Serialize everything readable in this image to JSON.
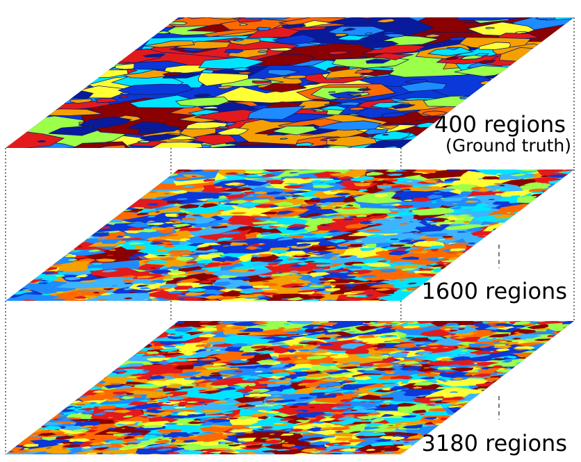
{
  "figure": {
    "layers": [
      {
        "label": "400 regions",
        "sublabel": "(Ground truth)",
        "palette": [
          "#f5a000",
          "#0b38d8",
          "#1e8cff",
          "#00e5ff",
          "#9cff4a",
          "#e31a1c",
          "#ff6a00",
          "#8b0000",
          "#ffff33",
          "#0a1a9c"
        ]
      },
      {
        "label": "1600 regions",
        "sublabel": "",
        "palette": [
          "#0b38d8",
          "#1e8cff",
          "#00e5ff",
          "#9cff4a",
          "#e31a1c",
          "#ff6a00",
          "#f5a000",
          "#8b0000",
          "#ffff33",
          "#3cb4ff"
        ]
      },
      {
        "label": "3180 regions",
        "sublabel": "",
        "palette": [
          "#0b38d8",
          "#1e8cff",
          "#00e5ff",
          "#9cff4a",
          "#e31a1c",
          "#ff6a00",
          "#f5a000",
          "#8b0000",
          "#ffff33",
          "#3cb4ff"
        ]
      }
    ],
    "connector_color": "#333333"
  }
}
